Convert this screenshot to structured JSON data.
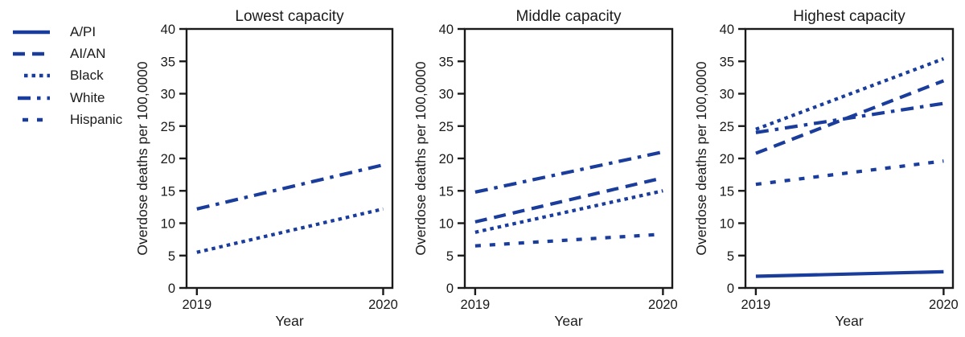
{
  "figure": {
    "ylabel": "Overdose deaths per 100,0000",
    "xlabel": "Year",
    "line_color": "#1a3d9c",
    "axis_color": "#1a1a1a",
    "text_color": "#1a1a1a",
    "background": "#ffffff",
    "ylim": [
      0,
      40
    ],
    "yticks": [
      "0",
      "5",
      "10",
      "15",
      "20",
      "25",
      "30",
      "35",
      "40"
    ],
    "xticks": [
      "2019",
      "2020"
    ],
    "grid": false,
    "legend_position": "left"
  },
  "legend": {
    "items": [
      {
        "label": "A/PI",
        "style": "solid"
      },
      {
        "label": "AI/AN",
        "style": "long-dash"
      },
      {
        "label": "Black",
        "style": "dot"
      },
      {
        "label": "White",
        "style": "dash-dot"
      },
      {
        "label": "Hispanic",
        "style": "short-dash"
      }
    ]
  },
  "chart_data": [
    {
      "type": "line",
      "title": "Lowest capacity",
      "xlabel": "Year",
      "ylabel": "Overdose deaths per 100,0000",
      "x": [
        2019,
        2020
      ],
      "ylim": [
        0,
        40
      ],
      "series": [
        {
          "name": "Black",
          "style": "dot",
          "values": [
            5.5,
            12.2
          ]
        },
        {
          "name": "White",
          "style": "dash-dot",
          "values": [
            12.2,
            19.0
          ]
        }
      ]
    },
    {
      "type": "line",
      "title": "Middle capacity",
      "xlabel": "Year",
      "ylabel": "Overdose deaths per 100,0000",
      "x": [
        2019,
        2020
      ],
      "ylim": [
        0,
        40
      ],
      "series": [
        {
          "name": "AI/AN",
          "style": "long-dash",
          "values": [
            10.2,
            17.0
          ]
        },
        {
          "name": "Black",
          "style": "dot",
          "values": [
            8.6,
            15.0
          ]
        },
        {
          "name": "White",
          "style": "dash-dot",
          "values": [
            14.8,
            21.0
          ]
        },
        {
          "name": "Hispanic",
          "style": "short-dash",
          "values": [
            6.5,
            8.3
          ]
        }
      ]
    },
    {
      "type": "line",
      "title": "Highest capacity",
      "xlabel": "Year",
      "ylabel": "Overdose deaths per 100,0000",
      "x": [
        2019,
        2020
      ],
      "ylim": [
        0,
        40
      ],
      "series": [
        {
          "name": "A/PI",
          "style": "solid",
          "values": [
            1.8,
            2.5
          ]
        },
        {
          "name": "AI/AN",
          "style": "long-dash",
          "values": [
            20.8,
            32.0
          ]
        },
        {
          "name": "Black",
          "style": "dot",
          "values": [
            24.5,
            35.4
          ]
        },
        {
          "name": "White",
          "style": "dash-dot",
          "values": [
            24.0,
            28.5
          ]
        },
        {
          "name": "Hispanic",
          "style": "short-dash",
          "values": [
            16.0,
            19.6
          ]
        }
      ]
    }
  ]
}
